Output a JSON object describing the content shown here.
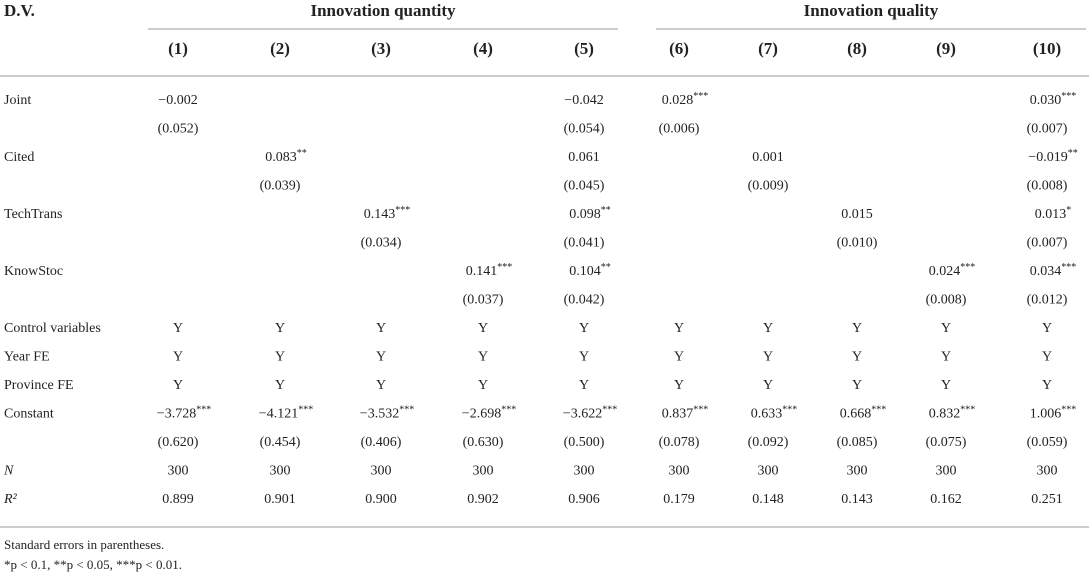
{
  "header": {
    "dv": "D.V.",
    "groups": [
      "Innovation quantity",
      "Innovation quality"
    ],
    "columns": [
      "(1)",
      "(2)",
      "(3)",
      "(4)",
      "(5)",
      "(6)",
      "(7)",
      "(8)",
      "(9)",
      "(10)"
    ]
  },
  "rows": [
    {
      "label": "Joint",
      "cells": [
        "−0.002",
        null,
        null,
        null,
        "−0.042",
        {
          "v": "0.028",
          "s": "***"
        },
        null,
        null,
        null,
        {
          "v": "0.030",
          "s": "***"
        }
      ]
    },
    {
      "label": null,
      "cells": [
        "(0.052)",
        null,
        null,
        null,
        "(0.054)",
        "(0.006)",
        null,
        null,
        null,
        "(0.007)"
      ]
    },
    {
      "label": "Cited",
      "cells": [
        null,
        {
          "v": "0.083",
          "s": "**"
        },
        null,
        null,
        "0.061",
        null,
        "0.001",
        null,
        null,
        {
          "v": "−0.019",
          "s": "**"
        }
      ]
    },
    {
      "label": null,
      "cells": [
        null,
        "(0.039)",
        null,
        null,
        "(0.045)",
        null,
        "(0.009)",
        null,
        null,
        "(0.008)"
      ]
    },
    {
      "label": "TechTrans",
      "cells": [
        null,
        null,
        {
          "v": "0.143",
          "s": "***"
        },
        null,
        {
          "v": "0.098",
          "s": "**"
        },
        null,
        null,
        "0.015",
        null,
        {
          "v": "0.013",
          "s": "*"
        }
      ]
    },
    {
      "label": null,
      "cells": [
        null,
        null,
        "(0.034)",
        null,
        "(0.041)",
        null,
        null,
        "(0.010)",
        null,
        "(0.007)"
      ]
    },
    {
      "label": "KnowStoc",
      "cells": [
        null,
        null,
        null,
        {
          "v": "0.141",
          "s": "***"
        },
        {
          "v": "0.104",
          "s": "**"
        },
        null,
        null,
        null,
        {
          "v": "0.024",
          "s": "***"
        },
        {
          "v": "0.034",
          "s": "***"
        }
      ]
    },
    {
      "label": null,
      "cells": [
        null,
        null,
        null,
        "(0.037)",
        "(0.042)",
        null,
        null,
        null,
        "(0.008)",
        "(0.012)"
      ]
    },
    {
      "label": "Control variables",
      "cells": [
        "Y",
        "Y",
        "Y",
        "Y",
        "Y",
        "Y",
        "Y",
        "Y",
        "Y",
        "Y"
      ]
    },
    {
      "label": "Year FE",
      "cells": [
        "Y",
        "Y",
        "Y",
        "Y",
        "Y",
        "Y",
        "Y",
        "Y",
        "Y",
        "Y"
      ]
    },
    {
      "label": "Province FE",
      "cells": [
        "Y",
        "Y",
        "Y",
        "Y",
        "Y",
        "Y",
        "Y",
        "Y",
        "Y",
        "Y"
      ]
    },
    {
      "label": "Constant",
      "cells": [
        {
          "v": "−3.728",
          "s": "***"
        },
        {
          "v": "−4.121",
          "s": "***"
        },
        {
          "v": "−3.532",
          "s": "***"
        },
        {
          "v": "−2.698",
          "s": "***"
        },
        {
          "v": "−3.622",
          "s": "***"
        },
        {
          "v": "0.837",
          "s": "***"
        },
        {
          "v": "0.633",
          "s": "***"
        },
        {
          "v": "0.668",
          "s": "***"
        },
        {
          "v": "0.832",
          "s": "***"
        },
        {
          "v": "1.006",
          "s": "***"
        }
      ]
    },
    {
      "label": null,
      "cells": [
        "(0.620)",
        "(0.454)",
        "(0.406)",
        "(0.630)",
        "(0.500)",
        "(0.078)",
        "(0.092)",
        "(0.085)",
        "(0.075)",
        "(0.059)"
      ]
    },
    {
      "label": "N",
      "cells": [
        "300",
        "300",
        "300",
        "300",
        "300",
        "300",
        "300",
        "300",
        "300",
        "300"
      ]
    },
    {
      "label": "R²",
      "cells": [
        "0.899",
        "0.901",
        "0.900",
        "0.902",
        "0.906",
        "0.179",
        "0.148",
        "0.143",
        "0.162",
        "0.251"
      ]
    }
  ],
  "notes": [
    "Standard errors in parentheses.",
    "*p < 0.1, **p < 0.05, ***p < 0.01."
  ]
}
